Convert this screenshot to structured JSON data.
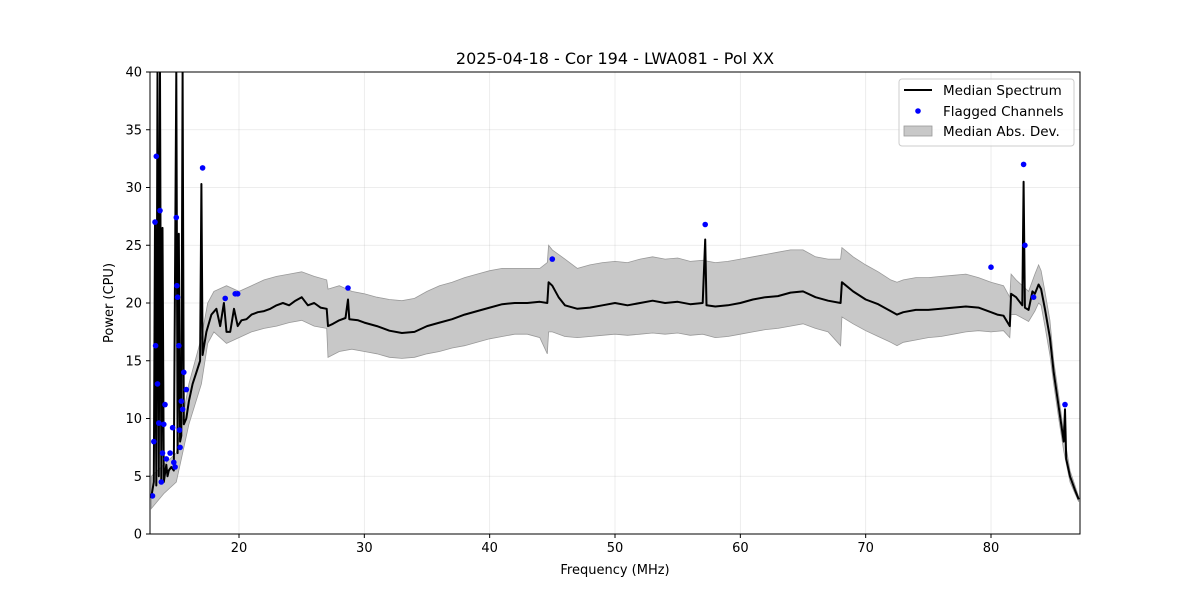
{
  "chart_data": {
    "type": "line",
    "title": "2025-04-18 - Cor 194 - LWA081 - Pol XX",
    "xlabel": "Frequency (MHz)",
    "ylabel": "Power (CPU)",
    "xlim": [
      12.9,
      87.1
    ],
    "ylim": [
      0,
      40
    ],
    "xticks": [
      20,
      30,
      40,
      50,
      60,
      70,
      80
    ],
    "yticks": [
      0,
      5,
      10,
      15,
      20,
      25,
      30,
      35,
      40
    ],
    "grid": true,
    "legend_position": "top-right",
    "colors": {
      "median": "#000000",
      "flagged": "#0000ff",
      "mad_fill": "#c8c8c8",
      "mad_edge": "#999999"
    },
    "series": [
      {
        "name": "Median Spectrum",
        "kind": "line",
        "points": [
          [
            13.0,
            3.2
          ],
          [
            13.2,
            4.5
          ],
          [
            13.3,
            27.0
          ],
          [
            13.4,
            4.2
          ],
          [
            13.5,
            40.0
          ],
          [
            13.6,
            5.0
          ],
          [
            13.7,
            40.0
          ],
          [
            13.8,
            4.6
          ],
          [
            13.9,
            26.5
          ],
          [
            14.0,
            4.5
          ],
          [
            14.2,
            6.0
          ],
          [
            14.3,
            5.0
          ],
          [
            14.4,
            5.5
          ],
          [
            14.6,
            5.8
          ],
          [
            14.8,
            5.5
          ],
          [
            15.0,
            40.0
          ],
          [
            15.1,
            7.0
          ],
          [
            15.2,
            26.0
          ],
          [
            15.3,
            8.0
          ],
          [
            15.4,
            8.5
          ],
          [
            15.5,
            40.0
          ],
          [
            15.6,
            9.5
          ],
          [
            15.8,
            10.0
          ],
          [
            16.0,
            11.5
          ],
          [
            16.3,
            13.0
          ],
          [
            16.6,
            14.0
          ],
          [
            16.9,
            15.0
          ],
          [
            17.0,
            30.3
          ],
          [
            17.1,
            15.5
          ],
          [
            17.4,
            17.5
          ],
          [
            17.8,
            19.0
          ],
          [
            18.2,
            19.5
          ],
          [
            18.5,
            18.0
          ],
          [
            18.8,
            20.0
          ],
          [
            19.0,
            17.5
          ],
          [
            19.3,
            17.5
          ],
          [
            19.6,
            19.5
          ],
          [
            19.9,
            18.0
          ],
          [
            20.2,
            18.5
          ],
          [
            20.6,
            18.6
          ],
          [
            21.0,
            19.0
          ],
          [
            21.5,
            19.2
          ],
          [
            22.0,
            19.3
          ],
          [
            22.5,
            19.5
          ],
          [
            23.0,
            19.8
          ],
          [
            23.5,
            20.0
          ],
          [
            24.0,
            19.8
          ],
          [
            24.5,
            20.2
          ],
          [
            25.0,
            20.5
          ],
          [
            25.5,
            19.8
          ],
          [
            26.0,
            20.0
          ],
          [
            26.5,
            19.6
          ],
          [
            27.0,
            19.5
          ],
          [
            27.1,
            18.0
          ],
          [
            27.5,
            18.2
          ],
          [
            28.0,
            18.5
          ],
          [
            28.5,
            18.7
          ],
          [
            28.7,
            20.3
          ],
          [
            28.8,
            18.6
          ],
          [
            29.5,
            18.5
          ],
          [
            30.0,
            18.3
          ],
          [
            31.0,
            18.0
          ],
          [
            32.0,
            17.6
          ],
          [
            33.0,
            17.4
          ],
          [
            34.0,
            17.5
          ],
          [
            35.0,
            18.0
          ],
          [
            36.0,
            18.3
          ],
          [
            37.0,
            18.6
          ],
          [
            38.0,
            19.0
          ],
          [
            39.0,
            19.3
          ],
          [
            40.0,
            19.6
          ],
          [
            41.0,
            19.9
          ],
          [
            42.0,
            20.0
          ],
          [
            43.0,
            20.0
          ],
          [
            44.0,
            20.1
          ],
          [
            44.6,
            20.0
          ],
          [
            44.7,
            21.8
          ],
          [
            45.0,
            21.5
          ],
          [
            45.5,
            20.5
          ],
          [
            46.0,
            19.8
          ],
          [
            47.0,
            19.5
          ],
          [
            48.0,
            19.6
          ],
          [
            49.0,
            19.8
          ],
          [
            50.0,
            20.0
          ],
          [
            51.0,
            19.8
          ],
          [
            52.0,
            20.0
          ],
          [
            53.0,
            20.2
          ],
          [
            54.0,
            20.0
          ],
          [
            55.0,
            20.1
          ],
          [
            56.0,
            19.9
          ],
          [
            57.0,
            20.0
          ],
          [
            57.2,
            25.5
          ],
          [
            57.3,
            19.8
          ],
          [
            58.0,
            19.7
          ],
          [
            59.0,
            19.8
          ],
          [
            60.0,
            20.0
          ],
          [
            61.0,
            20.3
          ],
          [
            62.0,
            20.5
          ],
          [
            63.0,
            20.6
          ],
          [
            64.0,
            20.9
          ],
          [
            65.0,
            21.0
          ],
          [
            66.0,
            20.5
          ],
          [
            67.0,
            20.2
          ],
          [
            68.0,
            20.0
          ],
          [
            68.1,
            21.8
          ],
          [
            69.0,
            21.0
          ],
          [
            70.0,
            20.3
          ],
          [
            71.0,
            19.9
          ],
          [
            72.0,
            19.3
          ],
          [
            72.5,
            19.0
          ],
          [
            73.0,
            19.2
          ],
          [
            74.0,
            19.4
          ],
          [
            75.0,
            19.4
          ],
          [
            76.0,
            19.5
          ],
          [
            77.0,
            19.6
          ],
          [
            78.0,
            19.7
          ],
          [
            79.0,
            19.6
          ],
          [
            80.0,
            19.2
          ],
          [
            80.5,
            19.0
          ],
          [
            81.0,
            18.9
          ],
          [
            81.5,
            18.0
          ],
          [
            81.6,
            20.8
          ],
          [
            82.0,
            20.5
          ],
          [
            82.5,
            19.8
          ],
          [
            82.6,
            30.5
          ],
          [
            82.7,
            19.6
          ],
          [
            83.0,
            19.4
          ],
          [
            83.3,
            21.0
          ],
          [
            83.5,
            20.8
          ],
          [
            83.8,
            21.6
          ],
          [
            84.0,
            21.2
          ],
          [
            84.3,
            19.5
          ],
          [
            84.7,
            17.0
          ],
          [
            85.0,
            14.0
          ],
          [
            85.4,
            11.0
          ],
          [
            85.8,
            8.0
          ],
          [
            85.9,
            10.8
          ],
          [
            86.0,
            6.5
          ],
          [
            86.3,
            5.0
          ],
          [
            86.7,
            3.8
          ],
          [
            87.0,
            3.0
          ]
        ]
      },
      {
        "name": "Flagged Channels",
        "kind": "scatter",
        "points": [
          [
            13.1,
            3.3
          ],
          [
            13.2,
            8.0
          ],
          [
            13.3,
            27.0
          ],
          [
            13.35,
            16.3
          ],
          [
            13.4,
            32.7
          ],
          [
            13.5,
            13.0
          ],
          [
            13.6,
            9.6
          ],
          [
            13.7,
            28.0
          ],
          [
            13.8,
            4.5
          ],
          [
            13.9,
            7.0
          ],
          [
            14.0,
            9.5
          ],
          [
            14.1,
            11.2
          ],
          [
            14.2,
            6.5
          ],
          [
            14.5,
            7.0
          ],
          [
            14.7,
            9.2
          ],
          [
            14.8,
            6.2
          ],
          [
            14.9,
            5.8
          ],
          [
            15.0,
            27.4
          ],
          [
            15.05,
            21.5
          ],
          [
            15.1,
            20.5
          ],
          [
            15.2,
            16.3
          ],
          [
            15.25,
            9.0
          ],
          [
            15.3,
            7.5
          ],
          [
            15.4,
            11.5
          ],
          [
            15.5,
            10.8
          ],
          [
            15.6,
            14.0
          ],
          [
            15.8,
            12.5
          ],
          [
            17.1,
            31.7
          ],
          [
            18.9,
            20.4
          ],
          [
            19.7,
            20.8
          ],
          [
            19.9,
            20.8
          ],
          [
            28.7,
            21.3
          ],
          [
            45.0,
            23.8
          ],
          [
            57.2,
            26.8
          ],
          [
            80.0,
            23.1
          ],
          [
            82.6,
            32.0
          ],
          [
            82.7,
            25.0
          ],
          [
            83.4,
            20.5
          ],
          [
            85.9,
            11.2
          ]
        ]
      },
      {
        "name": "Median Abs. Dev.",
        "kind": "band",
        "points": [
          [
            13.0,
            2.2,
            5.0
          ],
          [
            14.0,
            3.5,
            6.0
          ],
          [
            15.0,
            4.5,
            7.0
          ],
          [
            16.0,
            9.5,
            13.0
          ],
          [
            17.0,
            13.0,
            17.0
          ],
          [
            17.5,
            16.5,
            20.0
          ],
          [
            18.0,
            17.5,
            21.0
          ],
          [
            19.0,
            16.5,
            21.5
          ],
          [
            20.0,
            17.0,
            21.0
          ],
          [
            21.0,
            17.5,
            21.5
          ],
          [
            22.0,
            17.8,
            22.0
          ],
          [
            23.0,
            18.0,
            22.3
          ],
          [
            24.0,
            18.3,
            22.5
          ],
          [
            25.0,
            18.5,
            22.7
          ],
          [
            26.0,
            18.0,
            22.3
          ],
          [
            27.0,
            17.8,
            22.0
          ],
          [
            27.1,
            15.3,
            21.2
          ],
          [
            28.0,
            15.8,
            21.5
          ],
          [
            29.0,
            16.0,
            21.0
          ],
          [
            30.0,
            15.8,
            20.8
          ],
          [
            31.0,
            15.6,
            20.5
          ],
          [
            32.0,
            15.3,
            20.3
          ],
          [
            33.0,
            15.2,
            20.2
          ],
          [
            34.0,
            15.3,
            20.4
          ],
          [
            35.0,
            15.6,
            21.0
          ],
          [
            36.0,
            15.8,
            21.5
          ],
          [
            37.0,
            16.1,
            21.8
          ],
          [
            38.0,
            16.3,
            22.2
          ],
          [
            39.0,
            16.6,
            22.5
          ],
          [
            40.0,
            16.9,
            22.8
          ],
          [
            41.0,
            17.1,
            23.0
          ],
          [
            42.0,
            17.3,
            23.0
          ],
          [
            43.0,
            17.3,
            23.0
          ],
          [
            44.0,
            17.0,
            23.0
          ],
          [
            44.6,
            15.6,
            23.5
          ],
          [
            44.7,
            17.5,
            25.0
          ],
          [
            45.0,
            17.5,
            24.6
          ],
          [
            46.0,
            17.1,
            23.8
          ],
          [
            47.0,
            17.0,
            23.0
          ],
          [
            48.0,
            17.1,
            23.3
          ],
          [
            49.0,
            17.2,
            23.5
          ],
          [
            50.0,
            17.3,
            23.6
          ],
          [
            51.0,
            17.2,
            23.5
          ],
          [
            52.0,
            17.3,
            23.8
          ],
          [
            53.0,
            17.4,
            24.0
          ],
          [
            54.0,
            17.3,
            23.8
          ],
          [
            55.0,
            17.4,
            23.9
          ],
          [
            56.0,
            17.2,
            23.6
          ],
          [
            57.0,
            17.3,
            23.7
          ],
          [
            58.0,
            17.0,
            23.5
          ],
          [
            59.0,
            17.1,
            23.6
          ],
          [
            60.0,
            17.3,
            23.8
          ],
          [
            61.0,
            17.5,
            24.0
          ],
          [
            62.0,
            17.7,
            24.2
          ],
          [
            63.0,
            17.8,
            24.4
          ],
          [
            64.0,
            18.0,
            24.6
          ],
          [
            65.0,
            18.2,
            24.6
          ],
          [
            66.0,
            17.8,
            24.0
          ],
          [
            67.0,
            17.5,
            23.8
          ],
          [
            68.0,
            16.3,
            23.8
          ],
          [
            68.1,
            18.8,
            24.8
          ],
          [
            69.0,
            18.2,
            24.0
          ],
          [
            70.0,
            17.6,
            23.3
          ],
          [
            71.0,
            17.1,
            22.7
          ],
          [
            72.0,
            16.6,
            22.0
          ],
          [
            72.5,
            16.3,
            21.8
          ],
          [
            73.0,
            16.6,
            22.0
          ],
          [
            74.0,
            16.8,
            22.2
          ],
          [
            75.0,
            17.0,
            22.2
          ],
          [
            76.0,
            17.1,
            22.3
          ],
          [
            77.0,
            17.3,
            22.4
          ],
          [
            78.0,
            17.5,
            22.5
          ],
          [
            79.0,
            17.6,
            22.2
          ],
          [
            80.0,
            17.5,
            21.8
          ],
          [
            81.0,
            17.6,
            21.5
          ],
          [
            81.5,
            17.0,
            20.5
          ],
          [
            81.6,
            19.0,
            22.5
          ],
          [
            82.0,
            19.0,
            22.0
          ],
          [
            83.0,
            18.4,
            21.0
          ],
          [
            83.5,
            19.3,
            22.5
          ],
          [
            83.8,
            20.0,
            23.3
          ],
          [
            84.0,
            19.8,
            22.8
          ],
          [
            84.3,
            18.0,
            21.0
          ],
          [
            84.7,
            15.5,
            18.5
          ],
          [
            85.0,
            13.0,
            15.0
          ],
          [
            85.4,
            10.0,
            12.0
          ],
          [
            85.8,
            7.2,
            8.8
          ],
          [
            86.3,
            4.5,
            5.5
          ],
          [
            86.7,
            3.5,
            4.2
          ],
          [
            87.0,
            2.8,
            3.2
          ]
        ]
      }
    ]
  }
}
